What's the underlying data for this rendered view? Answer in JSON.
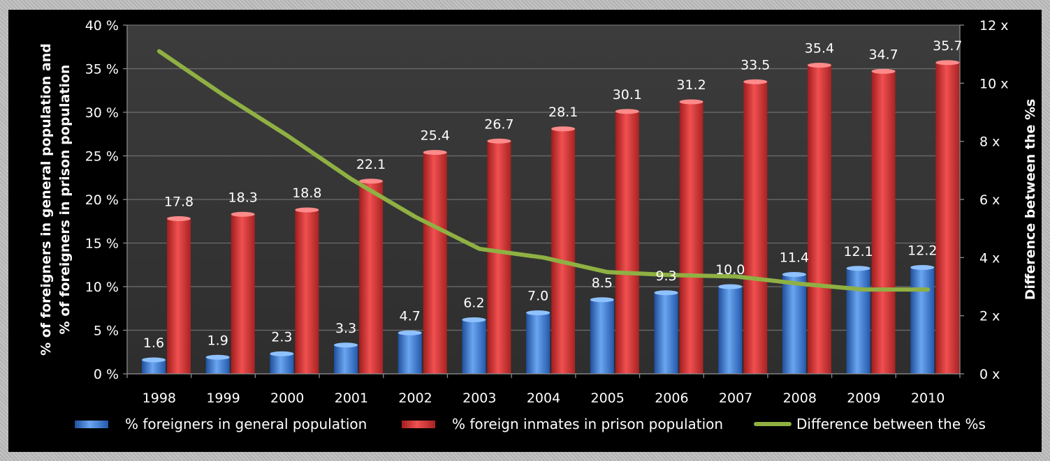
{
  "chart_data": {
    "type": "bar",
    "categories": [
      "1998",
      "1999",
      "2000",
      "2001",
      "2002",
      "2003",
      "2004",
      "2005",
      "2006",
      "2007",
      "2008",
      "2009",
      "2010"
    ],
    "series": [
      {
        "name": "% foreigners in general population",
        "kind": "bar",
        "axis": "left",
        "color": "#3f7fd9",
        "values": [
          1.6,
          1.9,
          2.3,
          3.3,
          4.7,
          6.2,
          7.0,
          8.5,
          9.3,
          10.0,
          11.4,
          12.1,
          12.2
        ],
        "labels": [
          "1.6",
          "1.9",
          "2.3",
          "3.3",
          "4.7",
          "6.2",
          "7.0",
          "8.5",
          "9.3",
          "10.0",
          "11.4",
          "12.1",
          "12.2"
        ]
      },
      {
        "name": "% foreign inmates in prison population",
        "kind": "bar",
        "axis": "left",
        "color": "#d83434",
        "values": [
          17.8,
          18.3,
          18.8,
          22.1,
          25.4,
          26.7,
          28.1,
          30.1,
          31.2,
          33.5,
          35.4,
          34.7,
          35.7
        ],
        "labels": [
          "17.8",
          "18.3",
          "18.8",
          "22.1",
          "25.4",
          "26.7",
          "28.1",
          "30.1",
          "31.2",
          "33.5",
          "35.4",
          "34.7",
          "35.7"
        ]
      },
      {
        "name": "Difference between the %s",
        "kind": "line",
        "axis": "right",
        "color": "#8fb043",
        "values": [
          11.1,
          9.6,
          8.2,
          6.7,
          5.4,
          4.3,
          4.0,
          3.5,
          3.4,
          3.35,
          3.1,
          2.9,
          2.9
        ]
      }
    ],
    "left_axis": {
      "title_line1": "% of foreigners in general population and",
      "title_line2": "% of foreigners in prison population",
      "ylim": [
        0,
        40
      ],
      "ticks": [
        "0 %",
        "5 %",
        "10 %",
        "15 %",
        "20 %",
        "25 %",
        "30 %",
        "35 %",
        "40 %"
      ]
    },
    "right_axis": {
      "title": "Difference between the %s",
      "ylim": [
        0,
        12
      ],
      "ticks": [
        "0 x",
        "2 x",
        "4 x",
        "6 x",
        "8 x",
        "10 x",
        "12 x"
      ]
    },
    "grid": true,
    "legend_position": "bottom",
    "plot_background": "#3a3a3a"
  }
}
